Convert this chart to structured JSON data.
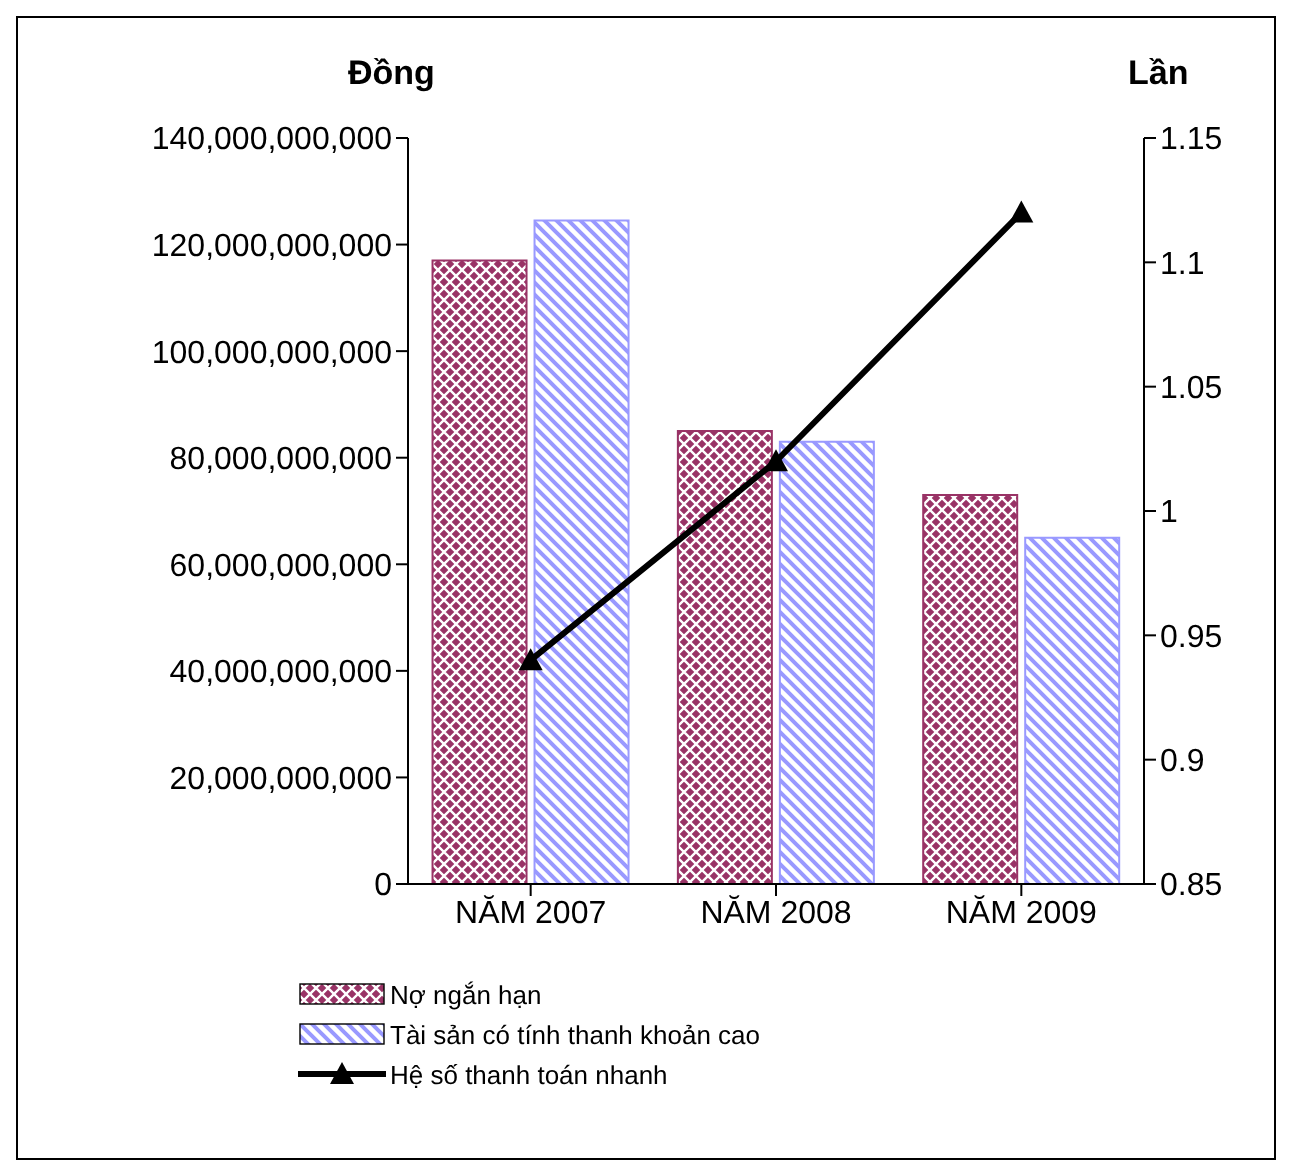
{
  "chart_data": {
    "type": "bar",
    "categories": [
      "NĂM 2007",
      "NĂM 2008",
      "NĂM 2009"
    ],
    "ylabel": "Đồng",
    "y2label": "Lần",
    "series": [
      {
        "name": "Nợ ngắn hạn",
        "color": "#993366",
        "values": [
          117000000000,
          85000000000,
          73000000000
        ]
      },
      {
        "name": "Tài sản có tính thanh khoản cao",
        "color": "#9999ff",
        "values": [
          124500000000,
          83000000000,
          65000000000
        ]
      },
      {
        "name": "Hệ số thanh toán nhanh",
        "type": "line",
        "axis": "y2",
        "color": "#000000",
        "marker": "triangle",
        "values": [
          0.94,
          1.02,
          1.12
        ]
      }
    ],
    "ylim": [
      0,
      140000000000
    ],
    "yticks": [
      0,
      {
        "value": 20000000000,
        "label": "20,000,000,000"
      },
      {
        "value": 40000000000,
        "label": "40,000,000,000"
      },
      {
        "value": 60000000000,
        "label": "60,000,000,000"
      },
      {
        "value": 80000000000,
        "label": "80,000,000,000"
      },
      {
        "value": 100000000000,
        "label": "100,000,000,000"
      },
      {
        "value": 120000000000,
        "label": "120,000,000,000"
      },
      {
        "value": 140000000000,
        "label": "140,000,000,000"
      }
    ],
    "y2lim": [
      0.85,
      1.15
    ],
    "y2ticks": [
      0.85,
      0.9,
      0.95,
      1,
      1.05,
      1.1,
      1.15
    ],
    "grid": false,
    "legend": "bottom"
  }
}
